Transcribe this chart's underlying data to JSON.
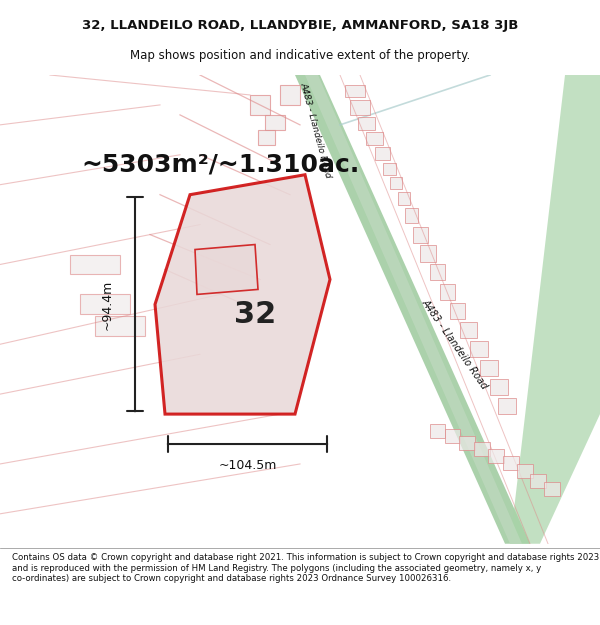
{
  "title_line1": "32, LLANDEILO ROAD, LLANDYBIE, AMMANFORD, SA18 3JB",
  "title_line2": "Map shows position and indicative extent of the property.",
  "area_text": "~5303m²/~1.310ac.",
  "label_32": "32",
  "dim_height": "~94.4m",
  "dim_width": "~104.5m",
  "road_label_top": "A483 - Llandeilo Road",
  "road_label_bottom": "A483 - Llandeilo Road",
  "footer_text": "Contains OS data © Crown copyright and database right 2021. This information is subject to Crown copyright and database rights 2023 and is reproduced with the permission of HM Land Registry. The polygons (including the associated geometry, namely x, y co-ordinates) are subject to Crown copyright and database rights 2023 Ordnance Survey 100026316.",
  "bg_color": "#f5f5f5",
  "map_bg": "#f0eeee",
  "main_polygon_color": "#cc0000",
  "main_polygon_fill": "#e8e0e0",
  "road_green_color": "#7db87d",
  "road_strip_color": "#8fbc8f",
  "minor_road_color": "#e8a0a0",
  "building_outline_color": "#cc6666",
  "building_fill": "#e8e0e0",
  "dim_line_color": "#222222",
  "text_color": "#222222"
}
